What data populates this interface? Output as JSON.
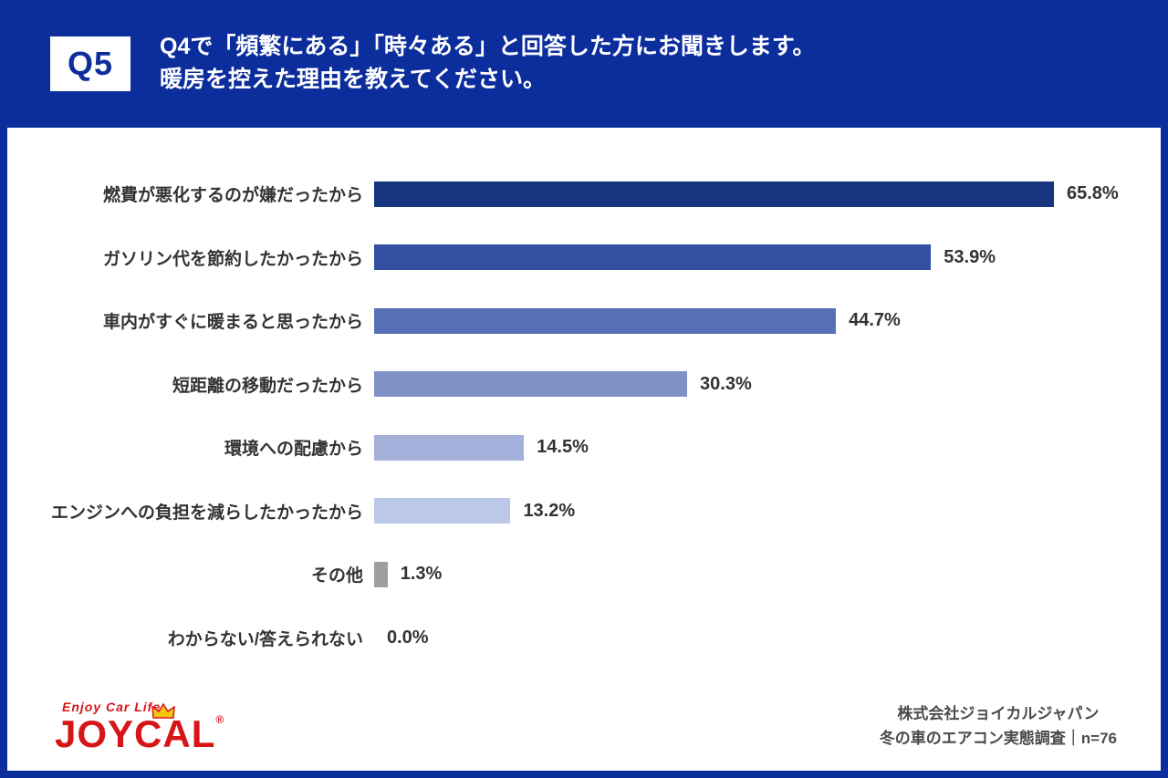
{
  "header": {
    "badge": "Q5",
    "title_line1": "Q4で「頻繁にある」「時々ある」と回答した方にお聞きします。",
    "title_line2": "暖房を控えた理由を教えてください。"
  },
  "chart_data": {
    "type": "bar",
    "orientation": "horizontal",
    "categories": [
      "燃費が悪化するのが嫌だったから",
      "ガソリン代を節約したかったから",
      "車内がすぐに暖まると思ったから",
      "短距離の移動だったから",
      "環境への配慮から",
      "エンジンへの負担を減らしたかったから",
      "その他",
      "わからない/答えられない"
    ],
    "values": [
      65.8,
      53.9,
      44.7,
      30.3,
      14.5,
      13.2,
      1.3,
      0.0
    ],
    "value_labels": [
      "65.8%",
      "53.9%",
      "44.7%",
      "30.3%",
      "14.5%",
      "13.2%",
      "1.3%",
      "0.0%"
    ],
    "bar_colors": [
      "#15357e",
      "#32509f",
      "#5570b4",
      "#7e92c8",
      "#a3b1da",
      "#bcc8e8",
      "#9e9e9e",
      "#cccccc"
    ],
    "title": "",
    "xlabel": "",
    "ylabel": "",
    "xlim": [
      0,
      70
    ],
    "grid": false,
    "legend": "none"
  },
  "footer": {
    "logo_tagline": "Enjoy Car Life",
    "logo_text": "JOYCAL",
    "logo_reg": "®",
    "credit_line1": "株式会社ジョイカルジャパン",
    "credit_line2": "冬の車のエアコン実態調査｜n=76"
  },
  "colors": {
    "frame_background": "#0c2d9c",
    "panel_background": "#ffffff",
    "badge_text": "#0c2d9c",
    "label_text": "#333333",
    "credit_text": "#4b4b4b",
    "logo_red": "#d61518",
    "crown_yellow": "#f6c50d"
  }
}
